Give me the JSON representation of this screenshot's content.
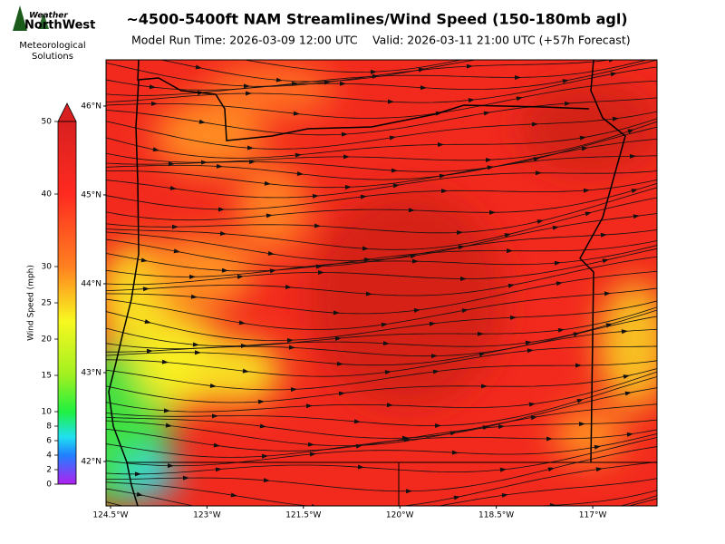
{
  "header": {
    "title": "~4500-5400ft NAM Streamlines/Wind Speed (150-180mb agl)",
    "model_run": "Model Run Time: 2026-03-09 12:00 UTC",
    "valid": "Valid: 2026-03-11 21:00 UTC  (+57h Forecast)"
  },
  "logo": {
    "brand_top": "Weather",
    "brand_main": "NorthWest",
    "org_line1": "Meteorological",
    "org_line2": "Solutions"
  },
  "colorbar": {
    "label": "Wind Speed (mph)",
    "ticks": [
      0,
      2,
      4,
      6,
      8,
      10,
      15,
      20,
      25,
      30,
      40,
      50
    ]
  },
  "map": {
    "lonlim": [
      -124.57,
      -116.0
    ],
    "latlim": [
      41.5,
      46.52
    ],
    "lon_ticks": [
      {
        "value": -124.5,
        "label": "124.5°W"
      },
      {
        "value": -123,
        "label": "123°W"
      },
      {
        "value": -121.5,
        "label": "121.5°W"
      },
      {
        "value": -120,
        "label": "120°W"
      },
      {
        "value": -118.5,
        "label": "118.5°W"
      },
      {
        "value": -117,
        "label": "117°W"
      }
    ],
    "lat_ticks": [
      {
        "value": 46,
        "label": "46°N"
      },
      {
        "value": 45,
        "label": "45°N"
      },
      {
        "value": 44,
        "label": "44°N"
      },
      {
        "value": 43,
        "label": "43°N"
      },
      {
        "value": 42,
        "label": "42°N"
      }
    ]
  }
}
